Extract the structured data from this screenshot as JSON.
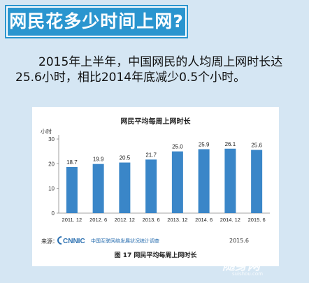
{
  "banner": {
    "title": "网民花多少时间上网?"
  },
  "headline": {
    "text": "2015年上半年，中国网民的人均周上网时长达25.6小时，相比2014年底减少0.5个小时。"
  },
  "chart_data": {
    "type": "bar",
    "title": "网民平均每周上网时长",
    "ylabel": "小时",
    "xlabel": "",
    "categories": [
      "2011. 12",
      "2012. 6",
      "2012. 12",
      "2013. 6",
      "2013. 12",
      "2014. 6",
      "2014. 12",
      "2015. 6"
    ],
    "values": [
      18.7,
      19.9,
      20.5,
      21.7,
      25.0,
      25.9,
      26.1,
      25.6
    ],
    "value_labels": [
      "18.7",
      "19.9",
      "20.5",
      "21.7",
      "25.0",
      "25.9",
      "26.1",
      "25.6"
    ],
    "ylim": [
      0,
      30
    ],
    "yticks": [
      "0",
      "10",
      "20",
      "30"
    ],
    "grid": false,
    "bar_color": "#3a86c8"
  },
  "footer": {
    "source_label": "来源：",
    "logo_text": "CNNIC",
    "organization": "中国互联网络发展状况统计调查",
    "date": "2015.6"
  },
  "figure_caption": "图 17 网民平均每周上网时长",
  "watermark": {
    "title": "随身网",
    "url": "suishou.com"
  },
  "colors": {
    "banner": "#2a95cf",
    "background": "#d5e6f3",
    "bars": "#3a86c8"
  }
}
